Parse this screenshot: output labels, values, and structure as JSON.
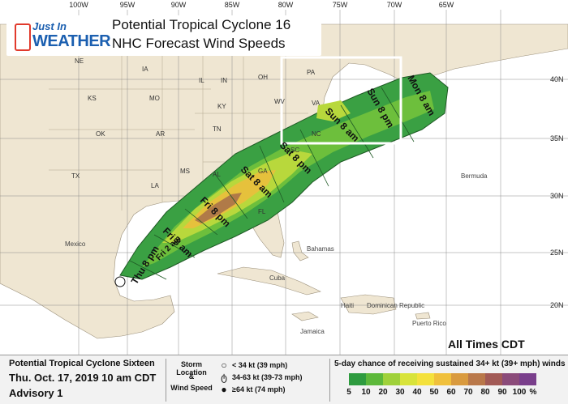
{
  "title": {
    "line1": "Potential Tropical Cyclone 16",
    "line2": "NHC Forecast Wind Speeds"
  },
  "logo": {
    "just": "Just In",
    "weather": "WEATHER"
  },
  "longitudes": [
    "100W",
    "95W",
    "90W",
    "85W",
    "80W",
    "75W",
    "70W",
    "65W"
  ],
  "latitudes": [
    "40N",
    "35N",
    "30N",
    "25N",
    "20N"
  ],
  "states": [
    "NE",
    "IA",
    "IL",
    "IN",
    "OH",
    "PA",
    "KS",
    "MO",
    "KY",
    "WV",
    "VA",
    "OK",
    "AR",
    "TN",
    "NC",
    "SC",
    "TX",
    "LA",
    "MS",
    "AL",
    "GA",
    "FL"
  ],
  "places": [
    "Bermuda",
    "Mexico",
    "Cuba",
    "Jamaica",
    "Haiti",
    "Dominican Republic",
    "Puerto Rico",
    "Bahamas"
  ],
  "times": [
    "Thu 8 pm",
    "Fri 2 am",
    "Fri 8 am",
    "Fri 8 pm",
    "Sat 8 am",
    "Sat 8 pm",
    "Sun 8 am",
    "Sun 8 pm",
    "Mon 8 am"
  ],
  "all_times": "All Times CDT",
  "legend": {
    "storm_name": "Potential Tropical Cyclone Sixteen",
    "date": "Thu. Oct. 17, 2019  10 am CDT",
    "advisory": "Advisory 1",
    "storm_location_line1": "Storm Location",
    "storm_location_line2": "&",
    "storm_location_line3": "Wind Speed",
    "sym1": "< 34 kt (39 mph)",
    "sym2": "34-63 kt (39-73 mph)",
    "sym3": "≥64 kt (74 mph)",
    "chance_title": "5-day chance of receiving sustained 34+ kt (39+ mph) winds",
    "scale_ticks": [
      "5",
      "10",
      "20",
      "30",
      "40",
      "50",
      "60",
      "70",
      "80",
      "90",
      "100"
    ],
    "percent": "%",
    "scale_colors": [
      "#2e9b3f",
      "#5cb83a",
      "#9fd13a",
      "#d8e33a",
      "#f4e13c",
      "#f0c03c",
      "#d99a3e",
      "#b9784a",
      "#a25a56",
      "#8b4b7a",
      "#7a3f8c"
    ]
  }
}
